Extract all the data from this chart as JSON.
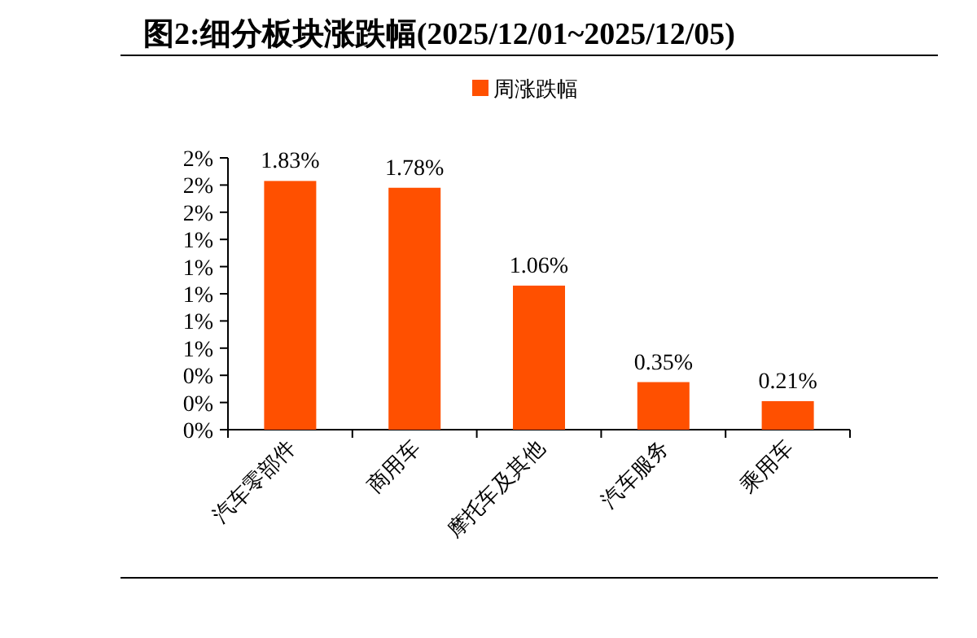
{
  "chart_data": {
    "type": "bar",
    "title": "图2:细分板块涨跌幅(2025/12/01~2025/12/05)",
    "categories": [
      "汽车零部件",
      "商用车",
      "摩托车及其他",
      "汽车服务",
      "乘用车"
    ],
    "series": [
      {
        "name": "周涨跌幅",
        "color": "#ff5000",
        "values": [
          1.83,
          1.78,
          1.06,
          0.35,
          0.21
        ],
        "value_labels": [
          "1.83%",
          "1.78%",
          "1.06%",
          "0.35%",
          "0.21%"
        ]
      }
    ],
    "ylim": [
      0,
      2.0
    ],
    "yticks": [
      {
        "value": 0,
        "label": "0%"
      },
      {
        "value": 0.2,
        "label": "0%"
      },
      {
        "value": 0.4,
        "label": "0%"
      },
      {
        "value": 0.6,
        "label": "1%"
      },
      {
        "value": 0.8,
        "label": "1%"
      },
      {
        "value": 1.0,
        "label": "1%"
      },
      {
        "value": 1.2,
        "label": "1%"
      },
      {
        "value": 1.4,
        "label": "1%"
      },
      {
        "value": 1.6,
        "label": "2%"
      },
      {
        "value": 1.8,
        "label": "2%"
      },
      {
        "value": 2.0,
        "label": "2%"
      }
    ],
    "legend": "top",
    "grid": false
  }
}
